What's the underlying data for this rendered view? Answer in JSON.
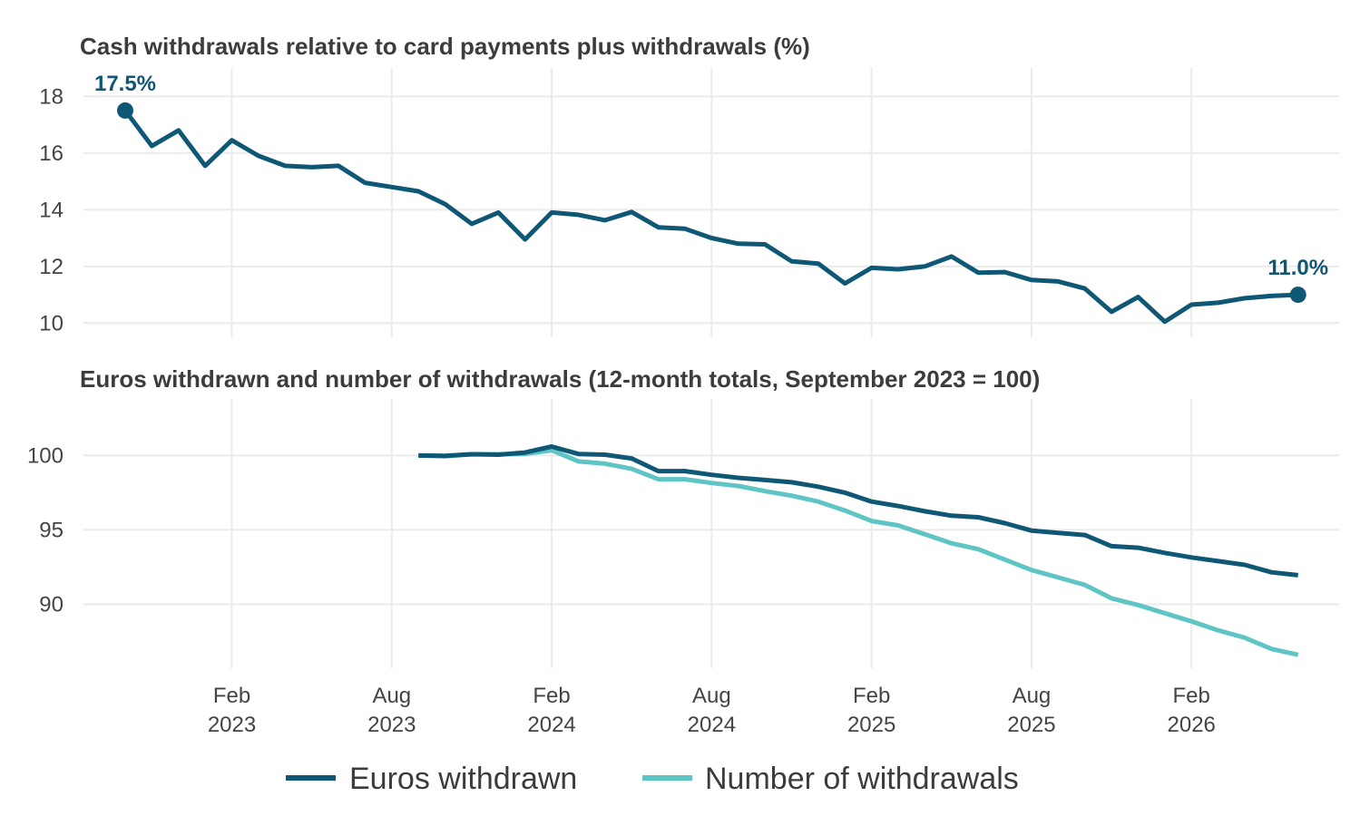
{
  "colors": {
    "euros": "#0e5775",
    "number": "#5ec4c4",
    "grid": "#ebebeb",
    "text": "#3c3c3c"
  },
  "chart_data": [
    {
      "type": "line",
      "title": "Cash withdrawals relative to card payments plus withdrawals (%)",
      "x_start": "2022-10",
      "ylim": [
        9.5,
        19
      ],
      "yticks": [
        10,
        12,
        14,
        16,
        18
      ],
      "grid": true,
      "series": [
        {
          "values": [
            17.5,
            16.25,
            16.8,
            15.55,
            16.45,
            15.9,
            15.55,
            15.5,
            15.55,
            14.95,
            14.8,
            14.65,
            14.2,
            13.5,
            13.9,
            12.95,
            13.9,
            13.82,
            13.63,
            13.92,
            13.38,
            13.33,
            13.0,
            12.8,
            12.78,
            12.18,
            12.1,
            11.4,
            11.95,
            11.9,
            12.0,
            12.35,
            11.78,
            11.8,
            11.52,
            11.47,
            11.22,
            10.4,
            10.92,
            10.05,
            10.65,
            10.72,
            10.88,
            10.96,
            11.0
          ]
        }
      ],
      "annotations": [
        {
          "x": "2022-10",
          "y": 17.5,
          "text": "17.5%"
        },
        {
          "x": "2026-06",
          "y": 11.0,
          "text": "11.0%"
        }
      ]
    },
    {
      "type": "line",
      "title": "Euros withdrawn and number of withdrawals (12-month totals, September 2023 = 100)",
      "x_start": "2023-09",
      "ylim": [
        85.7,
        103.8
      ],
      "yticks": [
        90,
        95,
        100
      ],
      "grid": true,
      "legend": "bottom",
      "series": [
        {
          "name": "Euros withdrawn",
          "values": [
            100.0,
            99.98,
            100.08,
            100.05,
            100.2,
            100.6,
            100.1,
            100.05,
            99.8,
            98.95,
            98.95,
            98.7,
            98.5,
            98.35,
            98.2,
            97.9,
            97.5,
            96.9,
            96.6,
            96.25,
            95.95,
            95.85,
            95.45,
            94.95,
            94.8,
            94.65,
            93.9,
            93.8,
            93.45,
            93.15,
            92.9,
            92.65,
            92.15,
            91.95
          ]
        },
        {
          "name": "Number of withdrawals",
          "values": [
            100.0,
            99.95,
            100.08,
            100.08,
            100.1,
            100.35,
            99.6,
            99.45,
            99.1,
            98.4,
            98.4,
            98.15,
            97.95,
            97.6,
            97.3,
            96.9,
            96.3,
            95.6,
            95.3,
            94.7,
            94.1,
            93.7,
            93.0,
            92.3,
            91.8,
            91.3,
            90.4,
            89.95,
            89.4,
            88.85,
            88.25,
            87.75,
            87.0,
            86.6
          ]
        }
      ]
    }
  ],
  "x_axis": {
    "ticks": [
      {
        "date": "2023-02",
        "line1": "Feb",
        "line2": "2023"
      },
      {
        "date": "2023-08",
        "line1": "Aug",
        "line2": "2023"
      },
      {
        "date": "2024-02",
        "line1": "Feb",
        "line2": "2024"
      },
      {
        "date": "2024-08",
        "line1": "Aug",
        "line2": "2024"
      },
      {
        "date": "2025-02",
        "line1": "Feb",
        "line2": "2025"
      },
      {
        "date": "2025-08",
        "line1": "Aug",
        "line2": "2025"
      },
      {
        "date": "2026-02",
        "line1": "Feb",
        "line2": "2026"
      }
    ]
  }
}
